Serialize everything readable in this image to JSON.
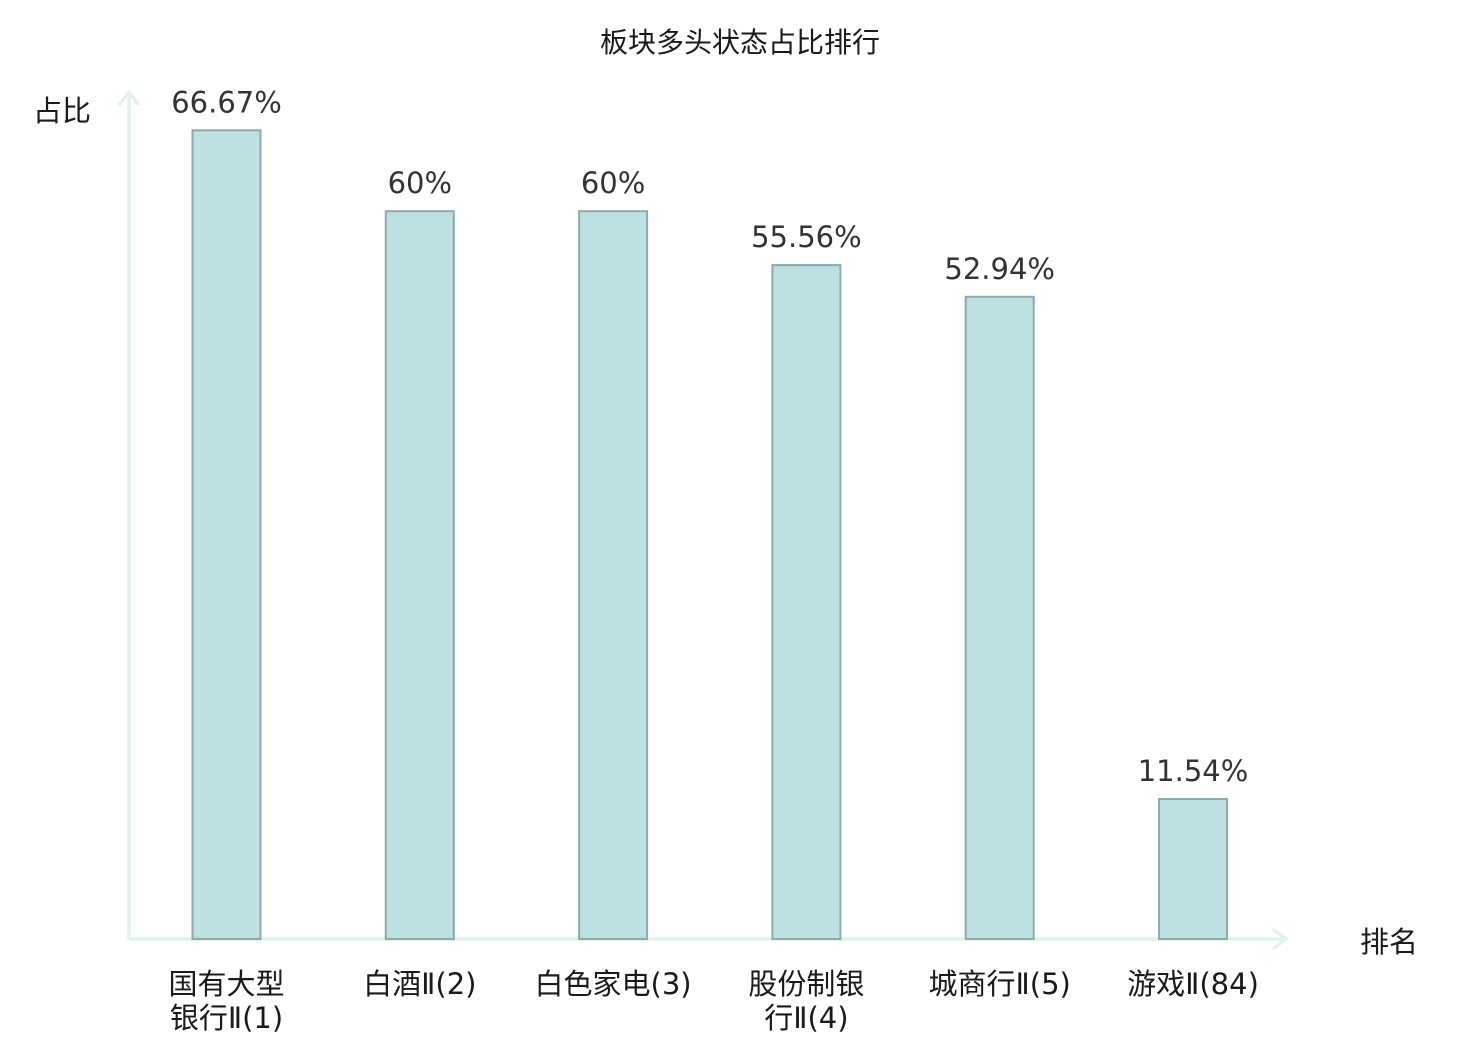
{
  "chart_data": {
    "type": "bar",
    "title": "板块多头状态占比排行",
    "ylabel": "占比",
    "xlabel": "排名",
    "ylim": [
      0,
      70
    ],
    "grid": false,
    "categories": [
      [
        "国有大型",
        "银行Ⅱ(1)"
      ],
      [
        "白酒Ⅱ(2)"
      ],
      [
        "白色家电(3)"
      ],
      [
        "股份制银",
        "行Ⅱ(4)"
      ],
      [
        "城商行Ⅱ(5)"
      ],
      [
        "游戏Ⅱ(84)"
      ]
    ],
    "values": [
      66.67,
      60,
      60,
      55.56,
      52.94,
      11.54
    ],
    "value_labels": [
      "66.67%",
      "60%",
      "60%",
      "55.56%",
      "52.94%",
      "11.54%"
    ],
    "highlight_index": 5,
    "colors": {
      "bar_fill": "#bde1e3",
      "bar_stroke": "#8fa9aa",
      "axis": "#e0f2f0",
      "highlight_label": "#cc0000",
      "label": "#1a1a1a",
      "value": "#333333"
    }
  }
}
